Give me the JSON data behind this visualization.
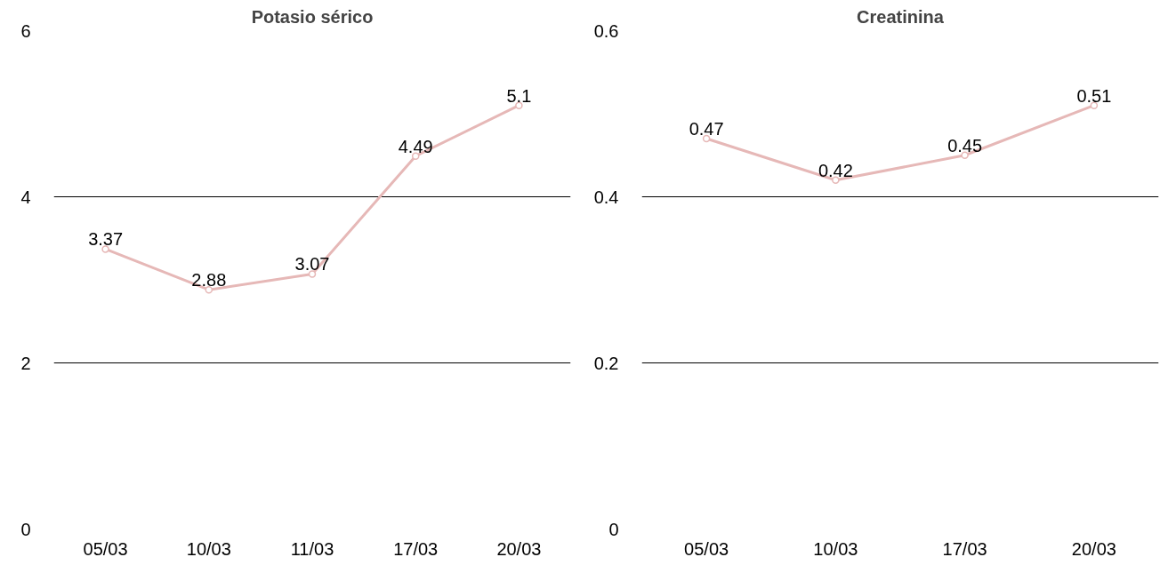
{
  "chart_data": [
    {
      "type": "line",
      "title": "Potasio sérico",
      "categories": [
        "05/03",
        "10/03",
        "11/03",
        "17/03",
        "20/03"
      ],
      "values": [
        3.37,
        2.88,
        3.07,
        4.49,
        5.1
      ],
      "color": "#e6b8b7",
      "ylim": [
        0,
        6
      ],
      "yticks": [
        0,
        2,
        4,
        6
      ],
      "grid": "y",
      "marker": "circle",
      "data_labels": true
    },
    {
      "type": "line",
      "title": "Creatinina",
      "categories": [
        "05/03",
        "10/03",
        "17/03",
        "20/03"
      ],
      "values": [
        0.47,
        0.42,
        0.45,
        0.51
      ],
      "color": "#e6b8b7",
      "ylim": [
        0,
        0.6
      ],
      "yticks": [
        0,
        0.2,
        0.4,
        0.6
      ],
      "grid": "y",
      "marker": "circle",
      "data_labels": true
    }
  ]
}
